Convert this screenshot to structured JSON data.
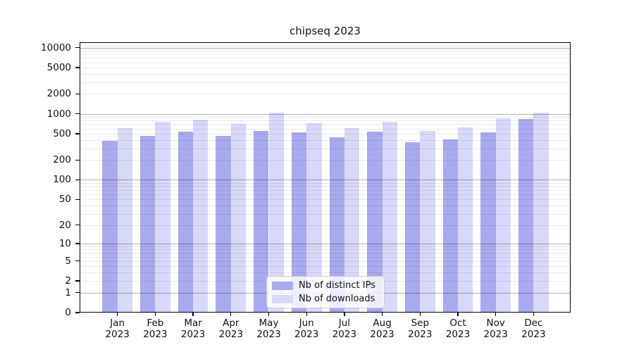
{
  "title": "chipseq 2023",
  "chart_data": {
    "type": "bar",
    "title": "chipseq 2023",
    "categories": [
      "Jan 2023",
      "Feb 2023",
      "Mar 2023",
      "Apr 2023",
      "May 2023",
      "Jun 2023",
      "Jul 2023",
      "Aug 2023",
      "Sep 2023",
      "Oct 2023",
      "Nov 2023",
      "Dec 2023"
    ],
    "series": [
      {
        "name": "Nb of distinct IPs",
        "color": "#a9a9ef",
        "values": [
          390,
          465,
          540,
          470,
          555,
          530,
          440,
          545,
          375,
          410,
          520,
          835
        ]
      },
      {
        "name": "Nb of downloads",
        "color": "#d8d8f8",
        "values": [
          605,
          765,
          810,
          705,
          1045,
          725,
          615,
          765,
          555,
          630,
          865,
          1045
        ]
      }
    ],
    "xlabel": "",
    "ylabel": "",
    "yscale": "log1p",
    "yticks": [
      0,
      1,
      2,
      5,
      10,
      20,
      50,
      100,
      200,
      500,
      1000,
      2000,
      5000,
      10000
    ],
    "ylim": [
      0,
      12000
    ],
    "grid": true,
    "legend_position": "lower center"
  },
  "colors": {
    "major_grid": "#b3b3b3",
    "minor_grid": "#e9e9e9",
    "spine": "#000000",
    "background": "#ffffff"
  }
}
